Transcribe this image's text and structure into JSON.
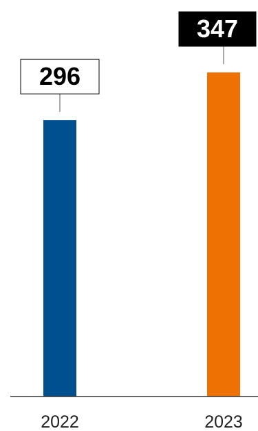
{
  "chart_data": {
    "type": "bar",
    "categories": [
      "2022",
      "2023"
    ],
    "values": [
      296,
      347
    ],
    "value_labels": [
      "296",
      "347"
    ],
    "ylim": [
      0,
      350
    ],
    "grid": false,
    "title": "",
    "xlabel": "",
    "ylabel": "",
    "bar_colors": [
      "#00508f",
      "#ee7203"
    ],
    "label_styles": [
      {
        "fill": "#ffffff",
        "text_color": "#000000",
        "border": "#000000"
      },
      {
        "fill": "#000000",
        "text_color": "#ffffff",
        "border": "#000000"
      }
    ]
  }
}
